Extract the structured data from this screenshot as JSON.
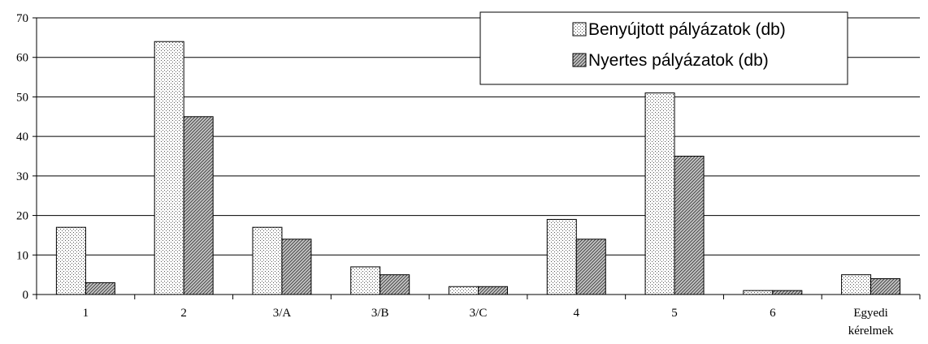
{
  "chart_data": {
    "type": "bar",
    "categories": [
      "1",
      "2",
      "3/A",
      "3/B",
      "3/C",
      "4",
      "5",
      "6",
      "Egyedi kérelmek"
    ],
    "category_lines": [
      [
        "1"
      ],
      [
        "2"
      ],
      [
        "3/A"
      ],
      [
        "3/B"
      ],
      [
        "3/C"
      ],
      [
        "4"
      ],
      [
        "5"
      ],
      [
        "6"
      ],
      [
        "Egyedi",
        "kérelmek"
      ]
    ],
    "series": [
      {
        "name": "Benyújtott pályázatok (db)",
        "values": [
          17,
          64,
          17,
          7,
          2,
          19,
          51,
          1,
          5
        ],
        "pattern": "dotted"
      },
      {
        "name": "Nyertes pályázatok (db)",
        "values": [
          3,
          45,
          14,
          5,
          2,
          14,
          35,
          1,
          4
        ],
        "pattern": "hatched"
      }
    ],
    "ylim": [
      0,
      70
    ],
    "yticks": [
      0,
      10,
      20,
      30,
      40,
      50,
      60,
      70
    ],
    "grid": true,
    "legend_position": "top-right",
    "title": "",
    "xlabel": "",
    "ylabel": ""
  }
}
